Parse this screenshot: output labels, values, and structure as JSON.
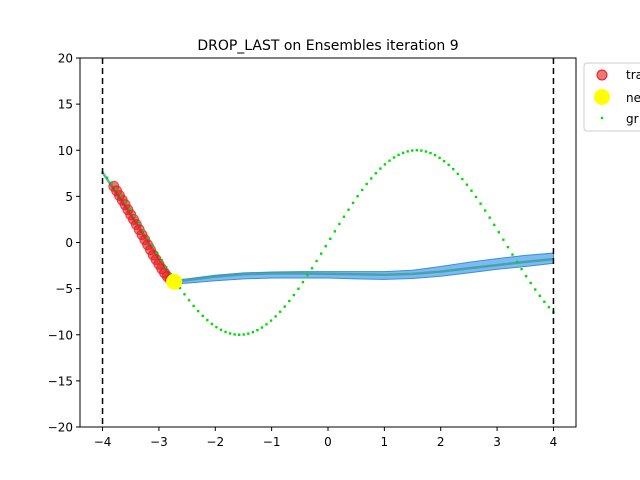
{
  "chart_data": {
    "type": "scatter",
    "title": "DROP_LAST on Ensembles iteration 9",
    "xlabel": "",
    "ylabel": "",
    "xlim": [
      -4.4,
      4.4
    ],
    "ylim": [
      -20,
      20
    ],
    "xticks": [
      -4,
      -3,
      -2,
      -1,
      0,
      1,
      2,
      3,
      4
    ],
    "yticks": [
      -20,
      -15,
      -10,
      -5,
      0,
      5,
      10,
      15,
      20
    ],
    "grid": false,
    "legend_position": "outside-top-right",
    "legend": [
      "tra",
      "ne",
      "gr"
    ],
    "vertical_lines": [
      -4,
      4
    ],
    "ground_truth": {
      "name": "gr",
      "function": "10*sin(x)",
      "x_start": -4,
      "x_end": 4,
      "n_points": 100,
      "color": "#00dd00"
    },
    "training_points": {
      "name": "tra",
      "color": "#e41a1c",
      "x": [
        -3.8,
        -3.75,
        -3.7,
        -3.65,
        -3.6,
        -3.55,
        -3.5,
        -3.45,
        -3.4,
        -3.35,
        -3.3,
        -3.25,
        -3.2,
        -3.15,
        -3.1,
        -3.05,
        -3.0,
        -2.95,
        -2.9,
        -2.85,
        -2.8,
        -2.75
      ],
      "y": [
        6.1,
        5.6,
        5.1,
        4.6,
        4.1,
        3.55,
        3.0,
        2.5,
        1.95,
        1.4,
        0.85,
        0.3,
        -0.25,
        -0.8,
        -1.35,
        -1.85,
        -2.35,
        -2.85,
        -3.3,
        -3.7,
        -4.0,
        -4.2
      ]
    },
    "new_point": {
      "name": "ne",
      "x": -2.73,
      "y": -4.25,
      "color": "#ffff00"
    },
    "prediction_mean": {
      "color": "#3b9c9c",
      "x": [
        -4.0,
        -3.8,
        -3.6,
        -3.4,
        -3.2,
        -3.0,
        -2.8,
        -2.6,
        -2.4,
        -2.2,
        -2.0,
        -1.5,
        -1.0,
        -0.5,
        0.0,
        0.5,
        1.0,
        1.5,
        2.0,
        2.5,
        3.0,
        3.5,
        4.0
      ],
      "y": [
        7.6,
        5.8,
        3.95,
        2.05,
        0.1,
        -1.8,
        -3.55,
        -4.15,
        -4.0,
        -3.85,
        -3.7,
        -3.45,
        -3.35,
        -3.35,
        -3.4,
        -3.45,
        -3.5,
        -3.4,
        -3.15,
        -2.8,
        -2.45,
        -2.1,
        -1.8
      ]
    },
    "prediction_band": {
      "color": "#5aaaee",
      "x": [
        -2.75,
        -2.5,
        -2.0,
        -1.5,
        -1.0,
        -0.5,
        0.0,
        0.5,
        1.0,
        1.5,
        2.0,
        2.5,
        3.0,
        3.5,
        4.0
      ],
      "lower": [
        -4.5,
        -4.4,
        -4.15,
        -3.95,
        -3.85,
        -3.85,
        -3.85,
        -3.95,
        -4.0,
        -3.9,
        -3.65,
        -3.3,
        -2.9,
        -2.6,
        -2.25
      ],
      "upper": [
        -4.1,
        -3.95,
        -3.55,
        -3.3,
        -3.2,
        -3.15,
        -3.15,
        -3.15,
        -3.15,
        -3.0,
        -2.6,
        -2.15,
        -1.75,
        -1.4,
        -1.15
      ]
    },
    "colors": {
      "vline": "#000000",
      "axis": "#000000"
    }
  }
}
